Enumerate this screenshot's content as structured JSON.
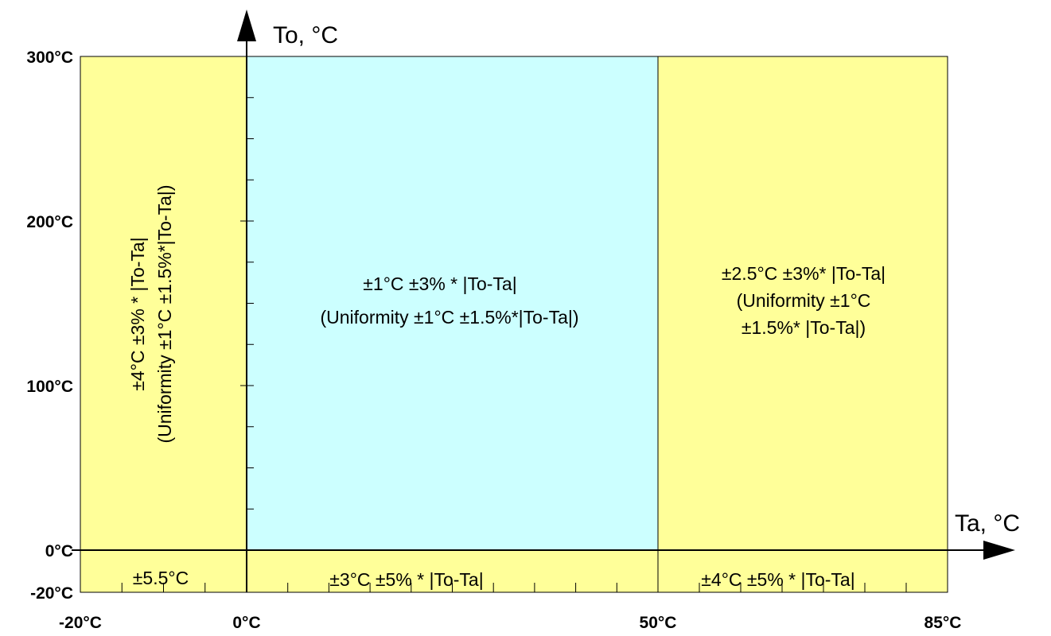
{
  "axes": {
    "x_title": "Ta, °C",
    "y_title": "To, °C",
    "x_ticks": [
      {
        "value": -20,
        "label": "-20°C"
      },
      {
        "value": 0,
        "label": "0°C"
      },
      {
        "value": 50,
        "label": "50°C"
      },
      {
        "value": 85,
        "label": "85°C"
      }
    ],
    "y_ticks": [
      {
        "value": 300,
        "label": "300°C"
      },
      {
        "value": 200,
        "label": "200°C"
      },
      {
        "value": 100,
        "label": "100°C"
      },
      {
        "value": 0,
        "label": "0°C"
      },
      {
        "value": -20,
        "label": "-20°C"
      }
    ],
    "x_range": [
      -20,
      85
    ],
    "y_range": [
      -20,
      300
    ]
  },
  "colors": {
    "yellow": "#ffff99",
    "cyan": "#ccffff"
  },
  "regions": [
    {
      "name": "region-cold-ambient",
      "ta": [
        -20,
        0
      ],
      "to": [
        0,
        300
      ],
      "color": "#ffff99",
      "lines": [
        "±4°C ±3% * |To-Ta|",
        "(Uniformity ±1°C ±1.5%*|To-Ta|)"
      ]
    },
    {
      "name": "region-standard",
      "ta": [
        0,
        50
      ],
      "to": [
        0,
        300
      ],
      "color": "#ccffff",
      "lines": [
        "±1°C ±3% * |To-Ta|",
        "(Uniformity ±1°C ±1.5%*|To-Ta|)"
      ]
    },
    {
      "name": "region-hot-ambient",
      "ta": [
        50,
        85
      ],
      "to": [
        0,
        300
      ],
      "color": "#ffff99",
      "lines": [
        "±2.5°C ±3%* |To-Ta|",
        "(Uniformity ±1°C",
        "±1.5%* |To-Ta|)"
      ]
    },
    {
      "name": "region-cold-object-cold-ambient",
      "ta": [
        -20,
        0
      ],
      "to": [
        -20,
        0
      ],
      "color": "#ffff99",
      "lines": [
        "±5.5°C"
      ]
    },
    {
      "name": "region-cold-object-standard",
      "ta": [
        0,
        50
      ],
      "to": [
        -20,
        0
      ],
      "color": "#ffff99",
      "lines": [
        "±3°C ±5% * |To-Ta|"
      ]
    },
    {
      "name": "region-cold-object-hot-ambient",
      "ta": [
        50,
        85
      ],
      "to": [
        -20,
        0
      ],
      "color": "#ffff99",
      "lines": [
        "±4°C ±5% * |To-Ta|"
      ]
    }
  ]
}
